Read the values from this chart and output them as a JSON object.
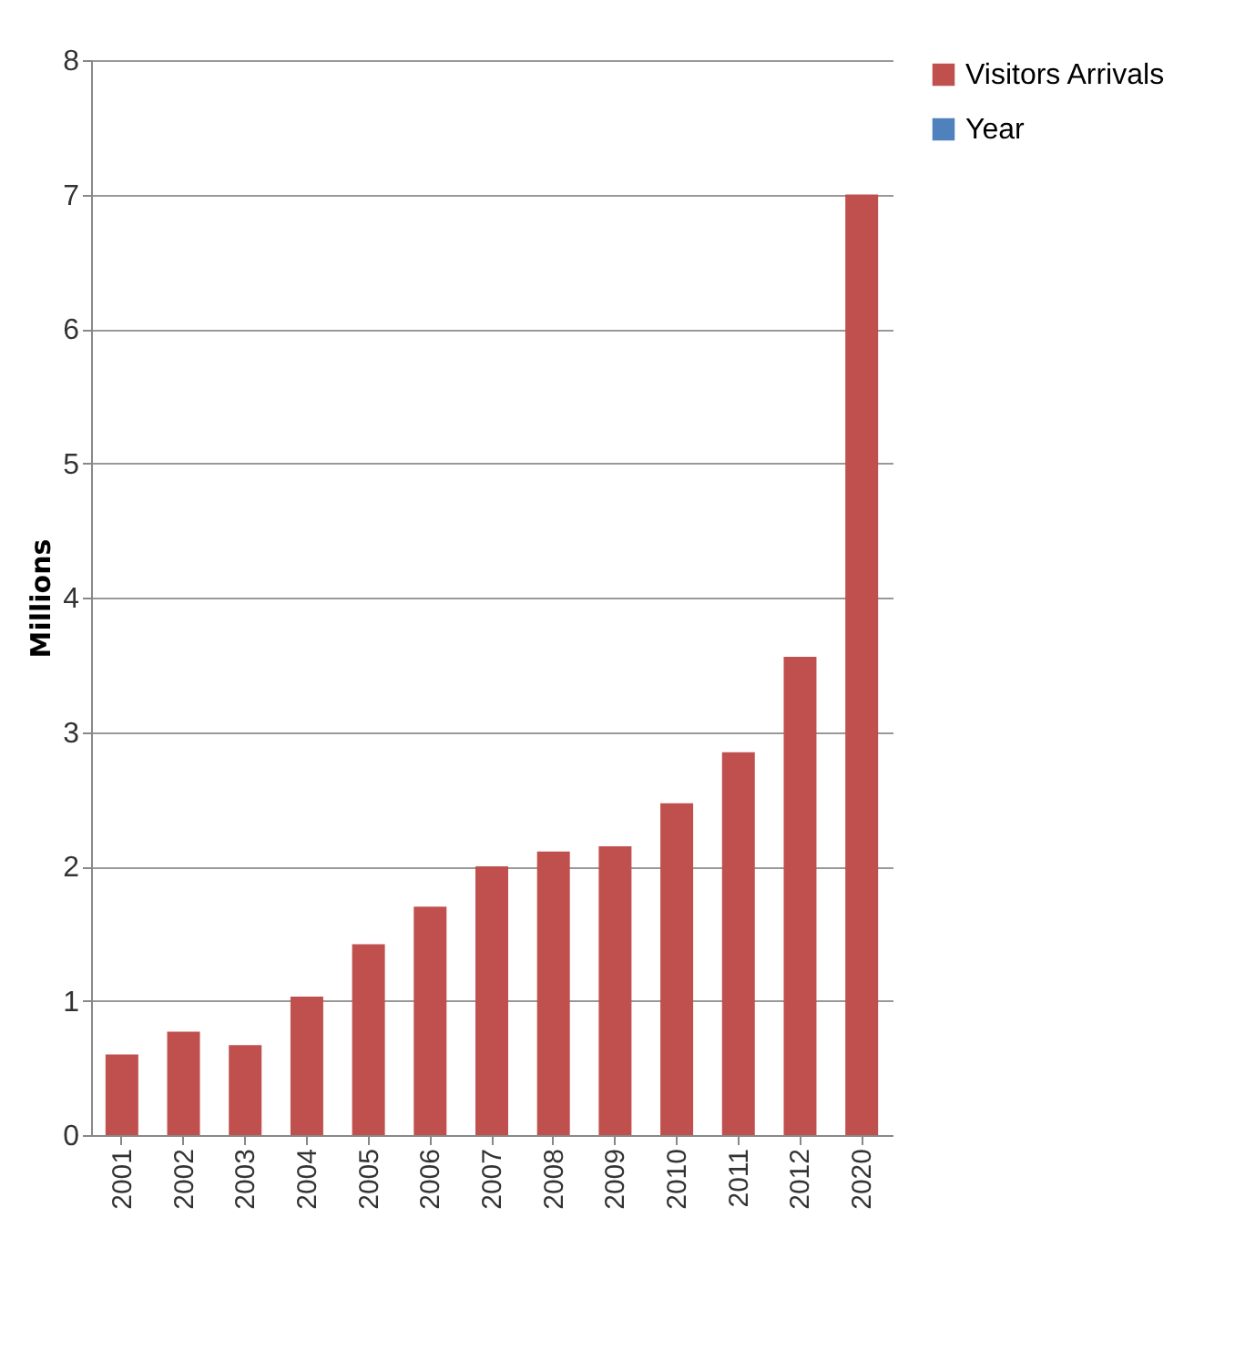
{
  "chart_data": {
    "type": "bar",
    "ylabel": "Millions",
    "categories": [
      "2001",
      "2002",
      "2003",
      "2004",
      "2005",
      "2006",
      "2007",
      "2008",
      "2009",
      "2010",
      "2011",
      "2012",
      "2020"
    ],
    "series": [
      {
        "name": "Visitors Arrivals",
        "color": "#c0504d",
        "values": [
          0.6,
          0.77,
          0.67,
          1.03,
          1.42,
          1.7,
          2.0,
          2.11,
          2.15,
          2.47,
          2.85,
          3.56,
          7.0
        ]
      },
      {
        "name": "Year",
        "color": "#4f81bd",
        "values": [
          null,
          null,
          null,
          null,
          null,
          null,
          null,
          null,
          null,
          null,
          null,
          null,
          null
        ]
      }
    ],
    "ylim": [
      0,
      8
    ],
    "yticks": [
      0,
      1,
      2,
      3,
      4,
      5,
      6,
      7,
      8
    ],
    "grid": "y",
    "legend": "right"
  }
}
